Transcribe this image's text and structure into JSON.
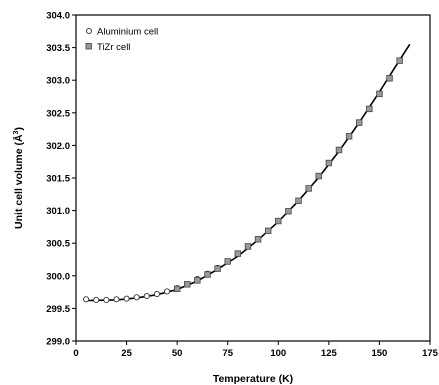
{
  "chart_data": {
    "type": "scatter",
    "xlabel": "Temperature (K)",
    "ylabel_main": "Unit cell volume (Å",
    "ylabel_sup": "3",
    "ylabel_close": ")",
    "xlim": [
      0,
      175
    ],
    "ylim": [
      299.0,
      304.0
    ],
    "xticks": [
      0,
      25,
      50,
      75,
      100,
      125,
      150,
      175
    ],
    "yticks": [
      299.0,
      299.5,
      300.0,
      300.5,
      301.0,
      301.5,
      302.0,
      302.5,
      303.0,
      303.5,
      304.0
    ],
    "xtick_labels": [
      "0",
      "25",
      "50",
      "75",
      "100",
      "125",
      "150",
      "175"
    ],
    "ytick_labels": [
      "299.0",
      "299.5",
      "300.0",
      "300.5",
      "301.0",
      "301.5",
      "302.0",
      "302.5",
      "303.0",
      "303.5",
      "304.0"
    ],
    "legend_placement": "top-left",
    "series": [
      {
        "name": "Aluminium cell",
        "marker": "open-circle",
        "color": "#ffffff",
        "x": [
          5,
          10,
          15,
          20,
          25,
          30,
          35,
          40,
          45,
          50,
          55,
          60,
          65,
          70
        ],
        "y": [
          299.64,
          299.63,
          299.63,
          299.64,
          299.65,
          299.67,
          299.69,
          299.72,
          299.76,
          299.81,
          299.87,
          299.95,
          300.03,
          300.12
        ]
      },
      {
        "name": "TiZr cell",
        "marker": "filled-square",
        "color": "#999999",
        "x": [
          50,
          55,
          60,
          65,
          70,
          75,
          80,
          85,
          90,
          95,
          100,
          105,
          110,
          115,
          120,
          125,
          130,
          135,
          140,
          145,
          150,
          155,
          160
        ],
        "y": [
          299.8,
          299.87,
          299.93,
          300.02,
          300.11,
          300.22,
          300.34,
          300.45,
          300.56,
          300.69,
          300.84,
          300.99,
          301.15,
          301.34,
          301.53,
          301.73,
          301.93,
          302.14,
          302.35,
          302.56,
          302.79,
          303.03,
          303.3
        ]
      }
    ],
    "fit_curve": {
      "x": [
        5,
        20,
        30,
        40,
        50,
        60,
        70,
        80,
        90,
        100,
        110,
        120,
        130,
        140,
        150,
        160,
        165
      ],
      "y": [
        299.62,
        299.63,
        299.66,
        299.71,
        299.79,
        299.92,
        300.1,
        300.3,
        300.55,
        300.83,
        301.15,
        301.51,
        301.91,
        302.35,
        302.82,
        303.31,
        303.55
      ]
    }
  }
}
